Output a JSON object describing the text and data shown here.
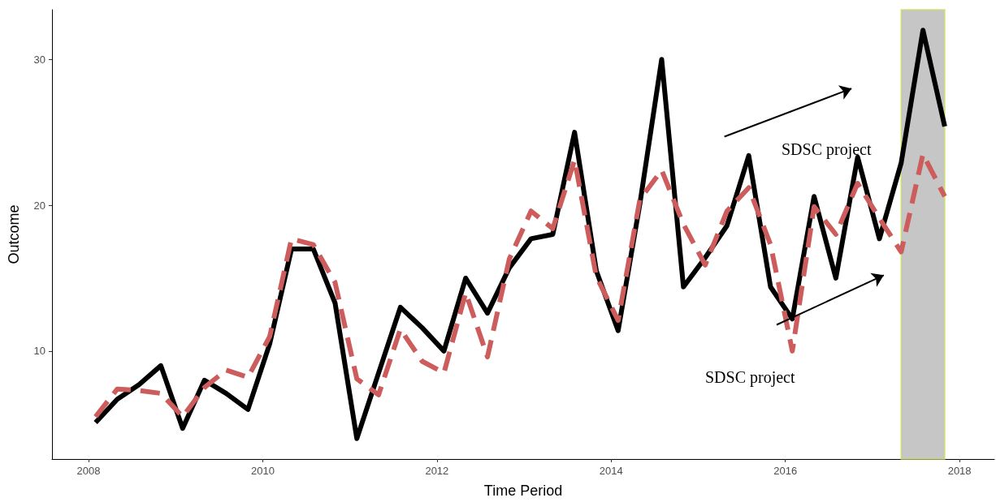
{
  "chart_data": {
    "type": "line",
    "xlabel": "Time Period",
    "ylabel": "Outcome",
    "x": [
      2008.08,
      2008.33,
      2008.58,
      2008.83,
      2009.08,
      2009.33,
      2009.58,
      2009.83,
      2010.08,
      2010.33,
      2010.58,
      2010.83,
      2011.08,
      2011.33,
      2011.58,
      2011.83,
      2012.08,
      2012.33,
      2012.58,
      2012.83,
      2013.08,
      2013.33,
      2013.58,
      2013.83,
      2014.08,
      2014.33,
      2014.58,
      2014.83,
      2015.08,
      2015.33,
      2015.58,
      2015.83,
      2016.08,
      2016.33,
      2016.58,
      2016.83,
      2017.08,
      2017.33,
      2017.58,
      2017.83
    ],
    "series": [
      {
        "color": "#000000",
        "line_style": "solid",
        "values": [
          5.1,
          6.7,
          7.7,
          9.0,
          4.7,
          8.0,
          7.1,
          6.0,
          10.5,
          17.0,
          17.0,
          13.3,
          4.0,
          8.5,
          13.0,
          11.6,
          10.0,
          15.0,
          12.6,
          15.7,
          17.7,
          18.0,
          25.0,
          15.5,
          11.4,
          20.1,
          30.0,
          14.4,
          16.4,
          18.6,
          23.4,
          14.4,
          12.2,
          20.6,
          15.0,
          23.3,
          17.7,
          22.9,
          32.0,
          25.4
        ]
      },
      {
        "color": "#cd5c5c",
        "line_style": "dashed",
        "values": [
          5.5,
          7.4,
          7.3,
          7.1,
          5.5,
          7.5,
          8.7,
          8.2,
          11.0,
          17.7,
          17.3,
          14.7,
          8.1,
          7.0,
          11.5,
          9.3,
          8.5,
          14.0,
          9.6,
          16.3,
          19.6,
          18.4,
          23.1,
          15.1,
          12.1,
          20.4,
          22.4,
          18.7,
          15.9,
          19.6,
          21.2,
          17.3,
          10.0,
          19.9,
          18.0,
          21.5,
          19.1,
          16.8,
          23.5,
          20.6
        ]
      }
    ],
    "xlim": [
      2007.58,
      2018.4
    ],
    "xticks": [
      2008,
      2010,
      2012,
      2014,
      2016,
      2018
    ],
    "ylim": [
      2.6,
      33.4
    ],
    "yticks": [
      10,
      20,
      30
    ],
    "grid": false,
    "marker": "none",
    "bands": [
      {
        "axis": "x",
        "from": 2017.33,
        "to": 2017.83,
        "color": "#bebebe"
      }
    ],
    "annotations": [
      "SDSC project",
      "SDSC project"
    ]
  }
}
